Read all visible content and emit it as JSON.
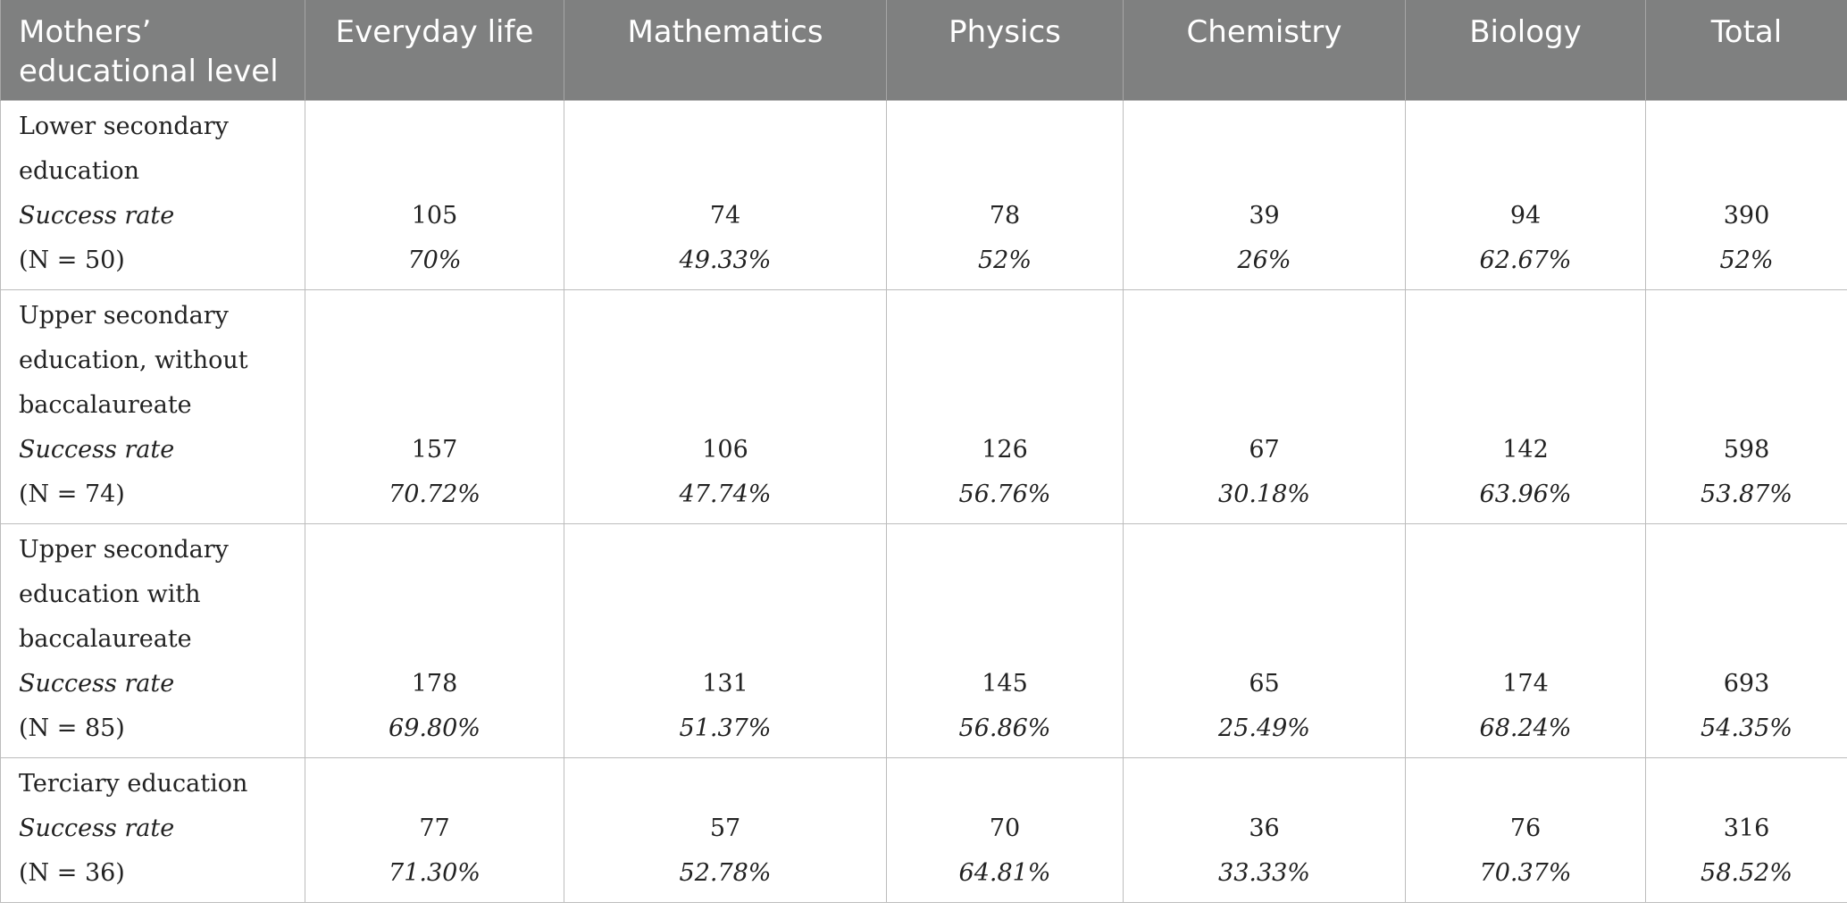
{
  "headers": [
    [
      "Mothers’",
      "educational level"
    ],
    [
      "Everyday life"
    ],
    [
      "Mathematics"
    ],
    [
      "Physics"
    ],
    [
      "Chemistry"
    ],
    [
      "Biology"
    ],
    [
      "Total"
    ]
  ],
  "rows": [
    {
      "label_lines": [
        "Lower secondary",
        "education"
      ],
      "success_label": "Success rate",
      "n_label": "(N = 50)",
      "counts": [
        "105",
        "74",
        "78",
        "39",
        "94",
        "390"
      ],
      "rates": [
        "70%",
        "49.33%",
        "52%",
        "26%",
        "62.67%",
        "52%"
      ]
    },
    {
      "label_lines": [
        "Upper secondary",
        "education, without",
        "baccalaureate"
      ],
      "success_label": "Success rate",
      "n_label": "(N = 74)",
      "counts": [
        "157",
        "106",
        "126",
        "67",
        "142",
        "598"
      ],
      "rates": [
        "70.72%",
        "47.74%",
        "56.76%",
        "30.18%",
        "63.96%",
        "53.87%"
      ]
    },
    {
      "label_lines": [
        "Upper secondary",
        "education with",
        "baccalaureate"
      ],
      "success_label": "Success rate",
      "n_label": "(N = 85)",
      "counts": [
        "178",
        "131",
        "145",
        "65",
        "174",
        "693"
      ],
      "rates": [
        "69.80%",
        "51.37%",
        "56.86%",
        "25.49%",
        "68.24%",
        "54.35%"
      ]
    },
    {
      "label_lines": [
        "Terciary education"
      ],
      "success_label": "Success rate",
      "n_label": "(N = 36)",
      "counts": [
        "77",
        "57",
        "70",
        "36",
        "76",
        "316"
      ],
      "rates": [
        "71.30%",
        "52.78%",
        "64.81%",
        "33.33%",
        "70.37%",
        "58.52%"
      ]
    }
  ]
}
